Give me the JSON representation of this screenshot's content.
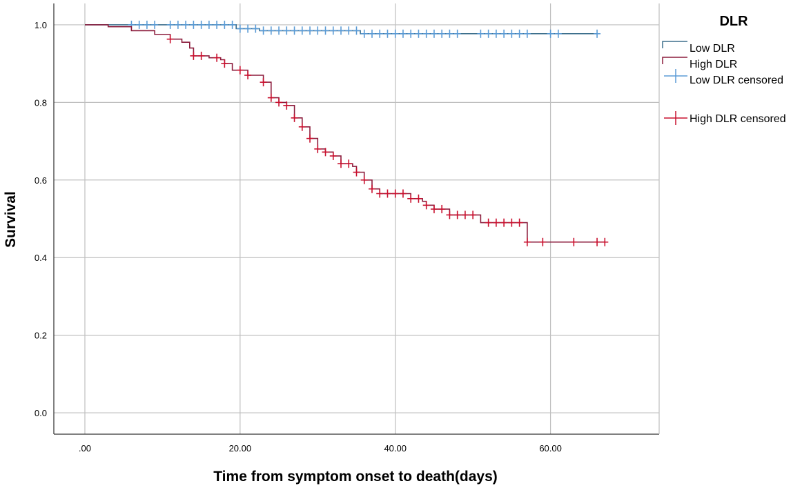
{
  "chart_data": {
    "type": "line",
    "title": "",
    "xlabel": "Time from symptom onset to death(days)",
    "ylabel": "Survival",
    "xlim": [
      -4,
      74
    ],
    "ylim": [
      -0.055,
      1.055
    ],
    "grid": true,
    "x_ticks": [
      0,
      20,
      40,
      60
    ],
    "x_tick_labels": [
      ".00",
      "20.00",
      "40.00",
      "60.00"
    ],
    "y_ticks": [
      0.0,
      0.2,
      0.4,
      0.6,
      0.8,
      1.0
    ],
    "y_tick_labels": [
      "0.0",
      "0.2",
      "0.4",
      "0.6",
      "0.8",
      "1.0"
    ],
    "legend": {
      "title": "DLR",
      "position": "top-right",
      "entries": [
        "Low DLR",
        "High DLR",
        "Low DLR censored",
        "High DLR censored"
      ]
    },
    "colors": {
      "low_line": "#3d6f8c",
      "low_censor": "#5b9bd5",
      "high_line": "#8b1c3c",
      "high_censor": "#c8102e",
      "grid": "#bfbfbf",
      "axis": "#000000"
    },
    "series": [
      {
        "name": "Low DLR",
        "steps": [
          [
            0,
            1.0
          ],
          [
            19.5,
            0.99
          ],
          [
            22.5,
            0.985
          ],
          [
            35.5,
            0.977
          ],
          [
            66,
            0.977
          ]
        ],
        "censored": [
          6,
          7,
          8,
          9,
          11,
          12,
          13,
          14,
          15,
          16,
          17,
          18,
          19,
          20,
          21,
          22,
          23,
          24,
          25,
          26,
          27,
          28,
          29,
          30,
          31,
          32,
          33,
          34,
          35,
          36,
          37,
          38,
          39,
          40,
          41,
          42,
          43,
          44,
          45,
          46,
          47,
          48,
          51,
          52,
          53,
          54,
          55,
          56,
          57,
          60,
          61,
          66
        ]
      },
      {
        "name": "High DLR",
        "steps": [
          [
            0,
            1.0
          ],
          [
            3,
            0.995
          ],
          [
            6,
            0.985
          ],
          [
            9,
            0.975
          ],
          [
            11,
            0.963
          ],
          [
            12.5,
            0.955
          ],
          [
            13.5,
            0.94
          ],
          [
            14,
            0.92
          ],
          [
            16,
            0.915
          ],
          [
            17.5,
            0.91
          ],
          [
            18,
            0.9
          ],
          [
            19,
            0.883
          ],
          [
            21,
            0.87
          ],
          [
            23,
            0.852
          ],
          [
            24,
            0.812
          ],
          [
            25,
            0.8
          ],
          [
            26,
            0.792
          ],
          [
            27,
            0.76
          ],
          [
            28,
            0.737
          ],
          [
            29,
            0.707
          ],
          [
            30,
            0.68
          ],
          [
            31,
            0.672
          ],
          [
            32,
            0.662
          ],
          [
            33,
            0.642
          ],
          [
            34.5,
            0.635
          ],
          [
            35,
            0.62
          ],
          [
            36,
            0.6
          ],
          [
            37,
            0.577
          ],
          [
            38,
            0.565
          ],
          [
            42,
            0.552
          ],
          [
            43.5,
            0.545
          ],
          [
            44,
            0.535
          ],
          [
            45,
            0.525
          ],
          [
            47,
            0.51
          ],
          [
            51,
            0.49
          ],
          [
            57,
            0.44
          ],
          [
            67,
            0.44
          ]
        ],
        "censored": [
          11,
          14,
          15,
          17,
          18,
          20,
          21,
          23,
          24,
          25,
          26,
          27,
          28,
          29,
          30,
          31,
          32,
          33,
          34,
          35,
          36,
          37,
          38,
          39,
          40,
          41,
          42,
          43,
          44,
          45,
          46,
          47,
          48,
          49,
          50,
          52,
          53,
          54,
          55,
          56,
          57,
          59,
          63,
          66,
          67
        ]
      }
    ]
  }
}
